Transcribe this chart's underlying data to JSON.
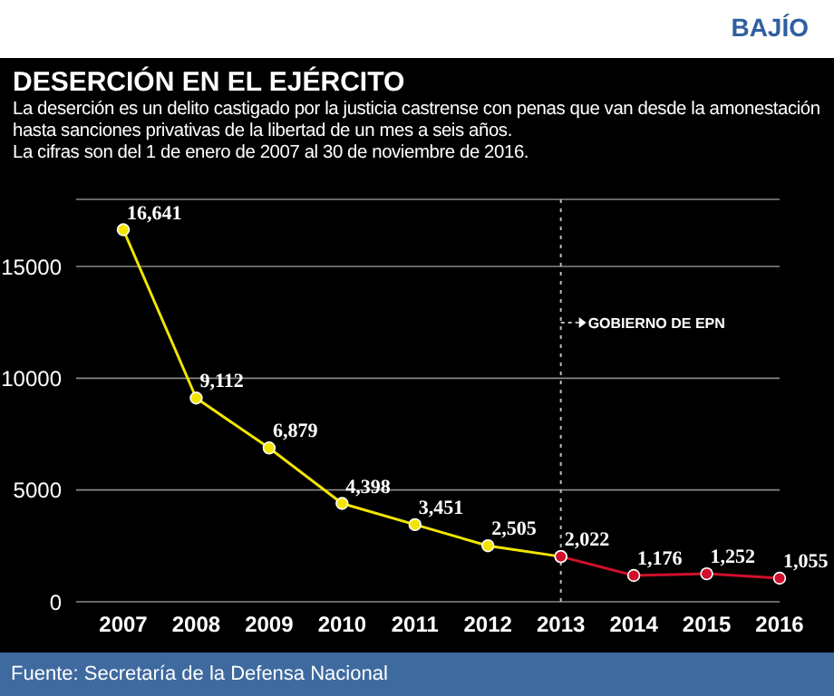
{
  "chart_data": {
    "type": "line",
    "title": "DESERCIÓN EN EL EJÉRCITO",
    "subtitle": "La deserción es un delito castigado por la justicia castrense con penas que van desde la amonestación hasta sanciones privativas de la libertad de un mes a seis años.\nLa cifras son del 1 de enero de 2007 al 30 de noviembre de 2016.",
    "annotations": [
      "BAJÍO",
      "Fuente:  Secretaría de la Defensa Nacional"
    ],
    "categories": [
      "2007",
      "2008",
      "2009",
      "2010",
      "2011",
      "2012",
      "2013",
      "2014",
      "2015",
      "2016"
    ],
    "series": [
      {
        "color": "#f2e600",
        "values": [
          16641,
          9112,
          6879,
          4398,
          3451,
          2505,
          2022,
          null,
          null,
          null
        ],
        "value_labels": [
          "16,641",
          "9,112",
          "6,879",
          "4,398",
          "3,451",
          "2,505",
          null,
          null,
          null,
          null
        ]
      },
      {
        "color": "#d0102a",
        "values": [
          null,
          null,
          null,
          null,
          null,
          null,
          2022,
          1176,
          1252,
          1055
        ],
        "value_labels": [
          null,
          null,
          null,
          null,
          null,
          null,
          "2,022",
          "1,176",
          "1,252",
          "1,055"
        ]
      }
    ],
    "ylim": [
      0,
      18000
    ],
    "yticks": [
      0,
      5000,
      10000,
      15000
    ],
    "grid": "y",
    "marker": "circle",
    "line_style": "solid",
    "ref_lines": [
      {
        "axis": "x",
        "value": "2013",
        "label": "GOBIERNO DE EPN",
        "line_style": "dotted",
        "color": "#bbbbbb"
      }
    ]
  }
}
